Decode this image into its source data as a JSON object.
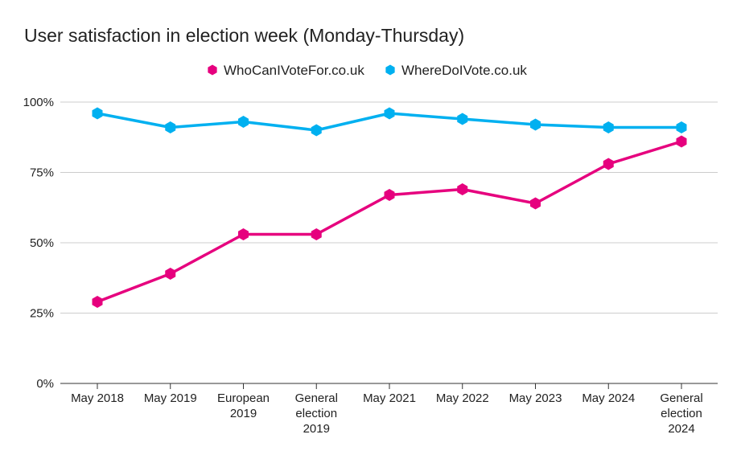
{
  "chart_data": {
    "type": "line",
    "title": "User satisfaction in election week (Monday-Thursday)",
    "xlabel": "",
    "ylabel": "",
    "ylim": [
      0,
      100
    ],
    "y_ticks": [
      {
        "value": 0,
        "label": "0%"
      },
      {
        "value": 25,
        "label": "25%"
      },
      {
        "value": 50,
        "label": "50%"
      },
      {
        "value": 75,
        "label": "75%"
      },
      {
        "value": 100,
        "label": "100%"
      }
    ],
    "categories": [
      [
        "May 2018"
      ],
      [
        "May 2019"
      ],
      [
        "European",
        "2019"
      ],
      [
        "General",
        "election",
        "2019"
      ],
      [
        "May 2021"
      ],
      [
        "May 2022"
      ],
      [
        "May 2023"
      ],
      [
        "May 2024"
      ],
      [
        "General",
        "election",
        "2024"
      ]
    ],
    "grid": true,
    "legend_position": "top",
    "series": [
      {
        "name": "WhoCanIVoteFor.co.uk",
        "color": "#e6007e",
        "marker": "hexagon",
        "values": [
          29,
          39,
          53,
          53,
          67,
          69,
          64,
          78,
          86
        ]
      },
      {
        "name": "WhereDoIVote.co.uk",
        "color": "#00b0f0",
        "marker": "hexagon",
        "values": [
          96,
          91,
          93,
          90,
          96,
          94,
          92,
          91,
          91
        ]
      }
    ]
  }
}
